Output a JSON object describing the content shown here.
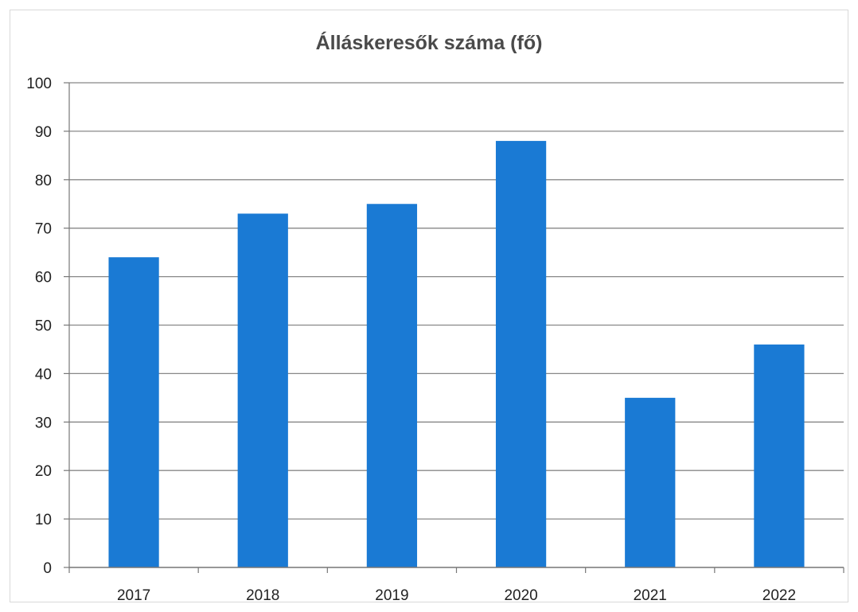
{
  "chart_data": {
    "type": "bar",
    "title": "Álláskeresők száma (fő)",
    "categories": [
      "2017",
      "2018",
      "2019",
      "2020",
      "2021",
      "2022"
    ],
    "values": [
      64,
      73,
      75,
      88,
      35,
      46
    ],
    "ylim": [
      0,
      100
    ],
    "yticks": [
      0,
      10,
      20,
      30,
      40,
      50,
      60,
      70,
      80,
      90,
      100
    ],
    "grid": true,
    "legend": "none",
    "bar_color": "#1a7ad4",
    "gridline_color": "#888888"
  }
}
